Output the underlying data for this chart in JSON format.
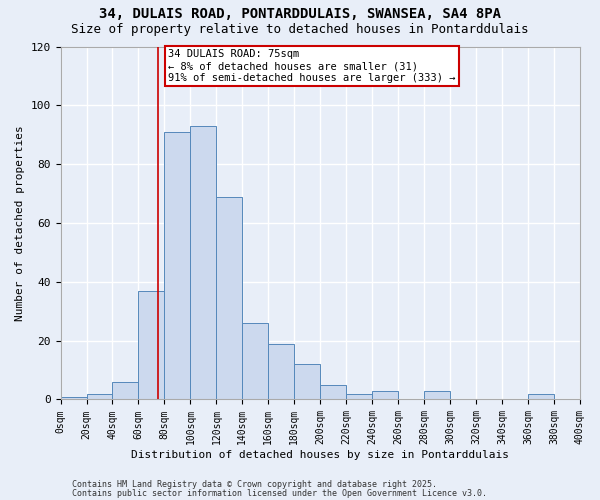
{
  "title1": "34, DULAIS ROAD, PONTARDDULAIS, SWANSEA, SA4 8PA",
  "title2": "Size of property relative to detached houses in Pontarddulais",
  "xlabel": "Distribution of detached houses by size in Pontarddulais",
  "ylabel": "Number of detached properties",
  "bin_edges": [
    0,
    20,
    40,
    60,
    80,
    100,
    120,
    140,
    160,
    180,
    200,
    220,
    240,
    260,
    280,
    300,
    320,
    340,
    360,
    380,
    400
  ],
  "bar_values": [
    1,
    2,
    6,
    37,
    91,
    93,
    69,
    26,
    19,
    12,
    5,
    2,
    3,
    0,
    3,
    0,
    0,
    0,
    2,
    0
  ],
  "bar_color": "#ccd9ee",
  "bar_edge_color": "#5588bb",
  "vline_x": 75,
  "vline_color": "#cc0000",
  "ylim": [
    0,
    120
  ],
  "xlim": [
    0,
    400
  ],
  "annotation_title": "34 DULAIS ROAD: 75sqm",
  "annotation_line2": "← 8% of detached houses are smaller (31)",
  "annotation_line3": "91% of semi-detached houses are larger (333) →",
  "footer1": "Contains HM Land Registry data © Crown copyright and database right 2025.",
  "footer2": "Contains public sector information licensed under the Open Government Licence v3.0.",
  "bg_color": "#e8eef8",
  "plot_bg_color": "#e8eef8",
  "grid_color": "#ffffff",
  "tick_labels": [
    "0sqm",
    "20sqm",
    "40sqm",
    "60sqm",
    "80sqm",
    "100sqm",
    "120sqm",
    "140sqm",
    "160sqm",
    "180sqm",
    "200sqm",
    "220sqm",
    "240sqm",
    "260sqm",
    "280sqm",
    "300sqm",
    "320sqm",
    "340sqm",
    "360sqm",
    "380sqm",
    "400sqm"
  ],
  "yticks": [
    0,
    20,
    40,
    60,
    80,
    100,
    120
  ],
  "title1_fontsize": 10,
  "title2_fontsize": 9,
  "axis_label_fontsize": 8,
  "tick_fontsize": 7,
  "annot_fontsize": 7.5,
  "footer_fontsize": 6
}
